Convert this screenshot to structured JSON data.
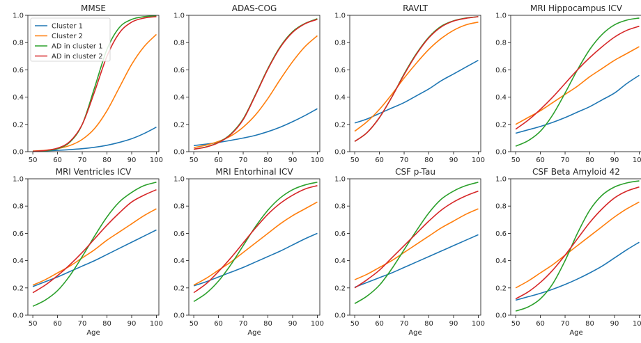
{
  "colors": {
    "cluster_1": "#1f77b4",
    "cluster_2": "#ff7f0e",
    "ad_cluster_1": "#2ca02c",
    "ad_cluster_2": "#d62728",
    "axes": "#262626"
  },
  "chart_data": [
    {
      "type": "line",
      "title": "MMSE",
      "xlabel": "",
      "ylabel": "",
      "xlim": [
        48,
        101
      ],
      "ylim": [
        0,
        1
      ],
      "x_ticks": [
        50,
        60,
        70,
        80,
        90,
        100
      ],
      "y_ticks": [
        0.0,
        0.2,
        0.4,
        0.6,
        0.8,
        1.0
      ],
      "grid": false,
      "legend": {
        "position": "top-left",
        "entries": [
          "Cluster 1",
          "Cluster 2",
          "AD in cluster 1",
          "AD in cluster 2"
        ]
      },
      "x": [
        50,
        55,
        60,
        65,
        70,
        75,
        80,
        85,
        90,
        95,
        100
      ],
      "series": [
        {
          "name": "Cluster 1",
          "color": "#1f77b4",
          "values": [
            0.003,
            0.006,
            0.01,
            0.015,
            0.022,
            0.032,
            0.047,
            0.068,
            0.095,
            0.133,
            0.18
          ]
        },
        {
          "name": "Cluster 2",
          "color": "#ff7f0e",
          "values": [
            0.005,
            0.01,
            0.022,
            0.045,
            0.09,
            0.17,
            0.3,
            0.47,
            0.64,
            0.77,
            0.86
          ]
        },
        {
          "name": "AD in cluster 1",
          "color": "#2ca02c",
          "values": [
            0.002,
            0.007,
            0.022,
            0.07,
            0.2,
            0.47,
            0.75,
            0.91,
            0.97,
            0.99,
            0.995
          ]
        },
        {
          "name": "AD in cluster 2",
          "color": "#d62728",
          "values": [
            0.003,
            0.009,
            0.026,
            0.075,
            0.2,
            0.44,
            0.7,
            0.87,
            0.95,
            0.98,
            0.99
          ]
        }
      ]
    },
    {
      "type": "line",
      "title": "ADAS-COG",
      "xlabel": "",
      "ylabel": "",
      "xlim": [
        48,
        101
      ],
      "ylim": [
        0,
        1
      ],
      "x_ticks": [
        50,
        60,
        70,
        80,
        90,
        100
      ],
      "y_ticks": [
        0.0,
        0.2,
        0.4,
        0.6,
        0.8,
        1.0
      ],
      "grid": false,
      "x": [
        50,
        55,
        60,
        65,
        70,
        75,
        80,
        85,
        90,
        95,
        100
      ],
      "series": [
        {
          "name": "Cluster 1",
          "color": "#1f77b4",
          "values": [
            0.045,
            0.055,
            0.068,
            0.083,
            0.1,
            0.12,
            0.147,
            0.18,
            0.22,
            0.265,
            0.315
          ]
        },
        {
          "name": "Cluster 2",
          "color": "#ff7f0e",
          "values": [
            0.03,
            0.048,
            0.075,
            0.115,
            0.18,
            0.27,
            0.39,
            0.53,
            0.66,
            0.77,
            0.85
          ]
        },
        {
          "name": "AD in cluster 1",
          "color": "#2ca02c",
          "values": [
            0.018,
            0.035,
            0.068,
            0.13,
            0.24,
            0.42,
            0.61,
            0.77,
            0.88,
            0.94,
            0.975
          ]
        },
        {
          "name": "AD in cluster 2",
          "color": "#d62728",
          "values": [
            0.018,
            0.034,
            0.066,
            0.126,
            0.235,
            0.415,
            0.605,
            0.765,
            0.875,
            0.938,
            0.97
          ]
        }
      ]
    },
    {
      "type": "line",
      "title": "RAVLT",
      "xlabel": "",
      "ylabel": "",
      "xlim": [
        48,
        101
      ],
      "ylim": [
        0,
        1
      ],
      "x_ticks": [
        50,
        60,
        70,
        80,
        90,
        100
      ],
      "y_ticks": [
        0.0,
        0.2,
        0.4,
        0.6,
        0.8,
        1.0
      ],
      "grid": false,
      "x": [
        50,
        55,
        60,
        65,
        70,
        75,
        80,
        85,
        90,
        95,
        100
      ],
      "series": [
        {
          "name": "Cluster 1",
          "color": "#1f77b4",
          "values": [
            0.21,
            0.24,
            0.28,
            0.32,
            0.36,
            0.41,
            0.46,
            0.52,
            0.57,
            0.62,
            0.67
          ]
        },
        {
          "name": "Cluster 2",
          "color": "#ff7f0e",
          "values": [
            0.15,
            0.22,
            0.31,
            0.42,
            0.54,
            0.65,
            0.75,
            0.83,
            0.89,
            0.93,
            0.95
          ]
        },
        {
          "name": "AD in cluster 1",
          "color": "#2ca02c",
          "values": [
            0.075,
            0.14,
            0.25,
            0.4,
            0.57,
            0.72,
            0.84,
            0.92,
            0.96,
            0.98,
            0.99
          ]
        },
        {
          "name": "AD in cluster 2",
          "color": "#d62728",
          "values": [
            0.075,
            0.14,
            0.25,
            0.4,
            0.565,
            0.715,
            0.835,
            0.915,
            0.958,
            0.978,
            0.99
          ]
        }
      ]
    },
    {
      "type": "line",
      "title": "MRI Hippocampus ICV",
      "xlabel": "",
      "ylabel": "",
      "xlim": [
        48,
        101
      ],
      "ylim": [
        0,
        1
      ],
      "x_ticks": [
        50,
        60,
        70,
        80,
        90,
        100
      ],
      "y_ticks": [
        0.0,
        0.2,
        0.4,
        0.6,
        0.8,
        1.0
      ],
      "grid": false,
      "x": [
        50,
        55,
        60,
        65,
        70,
        75,
        80,
        85,
        90,
        95,
        100
      ],
      "series": [
        {
          "name": "Cluster 1",
          "color": "#1f77b4",
          "values": [
            0.135,
            0.16,
            0.185,
            0.215,
            0.25,
            0.29,
            0.33,
            0.38,
            0.43,
            0.5,
            0.56
          ]
        },
        {
          "name": "Cluster 2",
          "color": "#ff7f0e",
          "values": [
            0.2,
            0.25,
            0.3,
            0.36,
            0.42,
            0.48,
            0.55,
            0.61,
            0.67,
            0.72,
            0.77
          ]
        },
        {
          "name": "AD in cluster 1",
          "color": "#2ca02c",
          "values": [
            0.04,
            0.08,
            0.15,
            0.27,
            0.43,
            0.6,
            0.75,
            0.86,
            0.93,
            0.965,
            0.98
          ]
        },
        {
          "name": "AD in cluster 2",
          "color": "#d62728",
          "values": [
            0.165,
            0.23,
            0.31,
            0.4,
            0.5,
            0.6,
            0.69,
            0.77,
            0.84,
            0.89,
            0.92
          ]
        }
      ]
    },
    {
      "type": "line",
      "title": "MRI Ventricles ICV",
      "xlabel": "Age",
      "ylabel": "",
      "xlim": [
        48,
        101
      ],
      "ylim": [
        0,
        1
      ],
      "x_ticks": [
        50,
        60,
        70,
        80,
        90,
        100
      ],
      "y_ticks": [
        0.0,
        0.2,
        0.4,
        0.6,
        0.8,
        1.0
      ],
      "grid": false,
      "x": [
        50,
        55,
        60,
        65,
        70,
        75,
        80,
        85,
        90,
        95,
        100
      ],
      "series": [
        {
          "name": "Cluster 1",
          "color": "#1f77b4",
          "values": [
            0.21,
            0.245,
            0.28,
            0.32,
            0.36,
            0.4,
            0.445,
            0.49,
            0.535,
            0.58,
            0.625
          ]
        },
        {
          "name": "Cluster 2",
          "color": "#ff7f0e",
          "values": [
            0.22,
            0.26,
            0.31,
            0.36,
            0.42,
            0.48,
            0.55,
            0.61,
            0.67,
            0.73,
            0.78
          ]
        },
        {
          "name": "AD in cluster 1",
          "color": "#2ca02c",
          "values": [
            0.065,
            0.11,
            0.18,
            0.29,
            0.43,
            0.58,
            0.72,
            0.83,
            0.9,
            0.95,
            0.975
          ]
        },
        {
          "name": "AD in cluster 2",
          "color": "#d62728",
          "values": [
            0.165,
            0.22,
            0.29,
            0.37,
            0.46,
            0.56,
            0.66,
            0.75,
            0.83,
            0.88,
            0.92
          ]
        }
      ]
    },
    {
      "type": "line",
      "title": "MRI Entorhinal ICV",
      "xlabel": "Age",
      "ylabel": "",
      "xlim": [
        48,
        101
      ],
      "ylim": [
        0,
        1
      ],
      "x_ticks": [
        50,
        60,
        70,
        80,
        90,
        100
      ],
      "y_ticks": [
        0.0,
        0.2,
        0.4,
        0.6,
        0.8,
        1.0
      ],
      "grid": false,
      "x": [
        50,
        55,
        60,
        65,
        70,
        75,
        80,
        85,
        90,
        95,
        100
      ],
      "series": [
        {
          "name": "Cluster 1",
          "color": "#1f77b4",
          "values": [
            0.215,
            0.245,
            0.28,
            0.315,
            0.35,
            0.39,
            0.43,
            0.47,
            0.515,
            0.56,
            0.6
          ]
        },
        {
          "name": "Cluster 2",
          "color": "#ff7f0e",
          "values": [
            0.22,
            0.27,
            0.33,
            0.39,
            0.46,
            0.53,
            0.6,
            0.67,
            0.73,
            0.78,
            0.83
          ]
        },
        {
          "name": "AD in cluster 1",
          "color": "#2ca02c",
          "values": [
            0.1,
            0.16,
            0.25,
            0.37,
            0.51,
            0.65,
            0.77,
            0.86,
            0.92,
            0.955,
            0.975
          ]
        },
        {
          "name": "AD in cluster 2",
          "color": "#d62728",
          "values": [
            0.165,
            0.23,
            0.32,
            0.42,
            0.53,
            0.64,
            0.74,
            0.82,
            0.88,
            0.925,
            0.95
          ]
        }
      ]
    },
    {
      "type": "line",
      "title": "CSF p-Tau",
      "xlabel": "Age",
      "ylabel": "",
      "xlim": [
        48,
        101
      ],
      "ylim": [
        0,
        1
      ],
      "x_ticks": [
        50,
        60,
        70,
        80,
        90,
        100
      ],
      "y_ticks": [
        0.0,
        0.2,
        0.4,
        0.6,
        0.8,
        1.0
      ],
      "grid": false,
      "x": [
        50,
        55,
        60,
        65,
        70,
        75,
        80,
        85,
        90,
        95,
        100
      ],
      "series": [
        {
          "name": "Cluster 1",
          "color": "#1f77b4",
          "values": [
            0.205,
            0.24,
            0.275,
            0.31,
            0.35,
            0.39,
            0.43,
            0.47,
            0.51,
            0.55,
            0.59
          ]
        },
        {
          "name": "Cluster 2",
          "color": "#ff7f0e",
          "values": [
            0.26,
            0.3,
            0.35,
            0.4,
            0.46,
            0.52,
            0.58,
            0.64,
            0.69,
            0.74,
            0.78
          ]
        },
        {
          "name": "AD in cluster 1",
          "color": "#2ca02c",
          "values": [
            0.085,
            0.14,
            0.22,
            0.34,
            0.48,
            0.62,
            0.75,
            0.85,
            0.91,
            0.95,
            0.975
          ]
        },
        {
          "name": "AD in cluster 2",
          "color": "#d62728",
          "values": [
            0.2,
            0.26,
            0.33,
            0.42,
            0.51,
            0.6,
            0.69,
            0.77,
            0.83,
            0.875,
            0.91
          ]
        }
      ]
    },
    {
      "type": "line",
      "title": "CSF Beta Amyloid 42",
      "xlabel": "Age",
      "ylabel": "",
      "xlim": [
        48,
        101
      ],
      "ylim": [
        0,
        1
      ],
      "x_ticks": [
        50,
        60,
        70,
        80,
        90,
        100
      ],
      "y_ticks": [
        0.0,
        0.2,
        0.4,
        0.6,
        0.8,
        1.0
      ],
      "grid": false,
      "x": [
        50,
        55,
        60,
        65,
        70,
        75,
        80,
        85,
        90,
        95,
        100
      ],
      "series": [
        {
          "name": "Cluster 1",
          "color": "#1f77b4",
          "values": [
            0.11,
            0.135,
            0.16,
            0.19,
            0.225,
            0.265,
            0.31,
            0.36,
            0.42,
            0.48,
            0.535
          ]
        },
        {
          "name": "Cluster 2",
          "color": "#ff7f0e",
          "values": [
            0.2,
            0.25,
            0.31,
            0.37,
            0.44,
            0.51,
            0.58,
            0.65,
            0.72,
            0.78,
            0.83
          ]
        },
        {
          "name": "AD in cluster 1",
          "color": "#2ca02c",
          "values": [
            0.03,
            0.06,
            0.12,
            0.23,
            0.4,
            0.6,
            0.77,
            0.88,
            0.94,
            0.97,
            0.985
          ]
        },
        {
          "name": "AD in cluster 2",
          "color": "#d62728",
          "values": [
            0.12,
            0.17,
            0.24,
            0.33,
            0.44,
            0.56,
            0.68,
            0.78,
            0.86,
            0.91,
            0.94
          ]
        }
      ]
    }
  ]
}
